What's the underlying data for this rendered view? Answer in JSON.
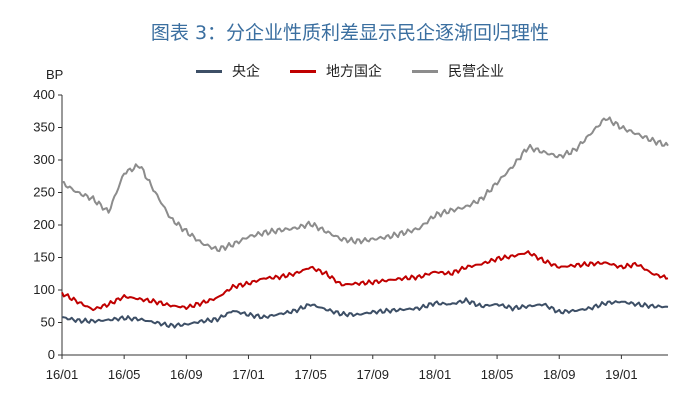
{
  "chart_data": {
    "type": "line",
    "title": "图表 3：分企业性质利差显示民企逐渐回归理性",
    "ylabel": "BP",
    "xlabel": "",
    "ylim": [
      0,
      400
    ],
    "yticks": [
      "0",
      "50",
      "100",
      "150",
      "200",
      "250",
      "300",
      "350",
      "400"
    ],
    "xticks": [
      "16/01",
      "16/05",
      "16/09",
      "17/01",
      "17/05",
      "17/09",
      "18/01",
      "18/05",
      "18/09",
      "19/01"
    ],
    "grid": false,
    "legend_position": "top-center",
    "x": [
      "16/01",
      "16/02",
      "16/03",
      "16/04",
      "16/05",
      "16/06",
      "16/07",
      "16/08",
      "16/09",
      "16/10",
      "16/11",
      "16/12",
      "17/01",
      "17/02",
      "17/03",
      "17/04",
      "17/05",
      "17/06",
      "17/07",
      "17/08",
      "17/09",
      "17/10",
      "17/11",
      "17/12",
      "18/01",
      "18/02",
      "18/03",
      "18/04",
      "18/05",
      "18/06",
      "18/07",
      "18/08",
      "18/09",
      "18/10",
      "18/11",
      "18/12",
      "19/01",
      "19/02",
      "19/03",
      "19/04"
    ],
    "series": [
      {
        "name": "央企",
        "color": "#3d4f66",
        "values": [
          58,
          53,
          52,
          54,
          57,
          55,
          50,
          45,
          47,
          52,
          55,
          68,
          62,
          58,
          63,
          68,
          78,
          70,
          63,
          62,
          66,
          68,
          70,
          72,
          80,
          78,
          84,
          75,
          78,
          72,
          75,
          78,
          66,
          68,
          72,
          80,
          82,
          78,
          75,
          74
        ]
      },
      {
        "name": "地方国企",
        "color": "#c00000",
        "values": [
          95,
          82,
          70,
          78,
          90,
          86,
          82,
          76,
          73,
          80,
          88,
          105,
          110,
          118,
          120,
          125,
          135,
          125,
          108,
          110,
          112,
          115,
          118,
          120,
          128,
          125,
          135,
          140,
          148,
          152,
          158,
          145,
          135,
          138,
          140,
          142,
          135,
          140,
          125,
          118
        ]
      },
      {
        "name": "民营企业",
        "color": "#8c8c8c",
        "values": [
          265,
          250,
          240,
          220,
          280,
          292,
          250,
          210,
          190,
          172,
          162,
          170,
          182,
          188,
          192,
          195,
          202,
          190,
          178,
          175,
          178,
          182,
          188,
          195,
          215,
          222,
          228,
          240,
          265,
          290,
          320,
          312,
          305,
          315,
          340,
          365,
          350,
          340,
          330,
          322
        ]
      }
    ]
  }
}
